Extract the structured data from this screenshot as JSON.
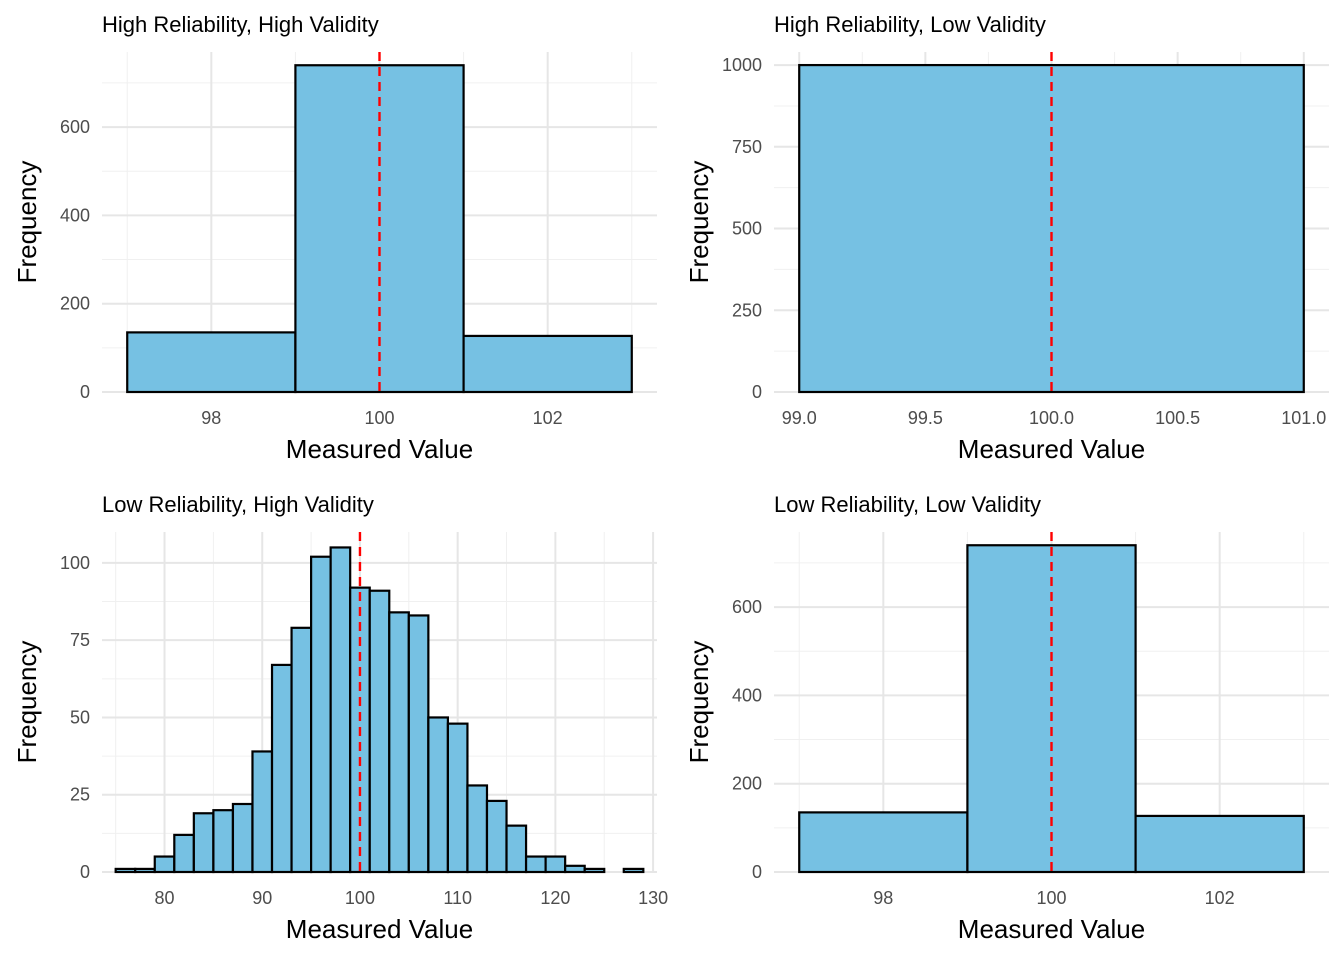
{
  "chart_data": [
    {
      "type": "bar",
      "title": "High Reliability, High Validity",
      "xlabel": "Measured Value",
      "ylabel": "Frequency",
      "xlim": [
        96.7,
        103.3
      ],
      "ylim": [
        0,
        770
      ],
      "x_ticks": [
        98,
        100,
        102
      ],
      "x_tick_labels": [
        "98",
        "100",
        "102"
      ],
      "y_ticks": [
        0,
        200,
        400,
        600
      ],
      "y_tick_labels": [
        "0",
        "200",
        "400",
        "600"
      ],
      "bins": [
        {
          "x0": 97,
          "x1": 99,
          "count": 135
        },
        {
          "x0": 99,
          "x1": 101,
          "count": 740
        },
        {
          "x0": 101,
          "x1": 103,
          "count": 127
        }
      ],
      "reference_line_x": 100,
      "grid": true
    },
    {
      "type": "bar",
      "title": "High Reliability, Low Validity",
      "xlabel": "Measured Value",
      "ylabel": "Frequency",
      "xlim": [
        98.9,
        101.1
      ],
      "ylim": [
        0,
        1040
      ],
      "x_ticks": [
        99.0,
        99.5,
        100.0,
        100.5,
        101.0
      ],
      "x_tick_labels": [
        "99.0",
        "99.5",
        "100.0",
        "100.5",
        "101.0"
      ],
      "y_ticks": [
        0,
        250,
        500,
        750,
        1000
      ],
      "y_tick_labels": [
        "0",
        "250",
        "500",
        "750",
        "1000"
      ],
      "bins": [
        {
          "x0": 99,
          "x1": 101,
          "count": 1000
        }
      ],
      "reference_line_x": 100,
      "grid": true
    },
    {
      "type": "bar",
      "title": "Low Reliability, High Validity",
      "xlabel": "Measured Value",
      "ylabel": "Frequency",
      "xlim": [
        73.6,
        130.4
      ],
      "ylim": [
        0,
        110
      ],
      "x_ticks": [
        80,
        90,
        100,
        110,
        120,
        130
      ],
      "x_tick_labels": [
        "80",
        "90",
        "100",
        "110",
        "120",
        "130"
      ],
      "y_ticks": [
        0,
        25,
        50,
        75,
        100
      ],
      "y_tick_labels": [
        "0",
        "25",
        "50",
        "75",
        "100"
      ],
      "bins": [
        {
          "x0": 75,
          "x1": 77,
          "count": 1
        },
        {
          "x0": 77,
          "x1": 79,
          "count": 1
        },
        {
          "x0": 79,
          "x1": 81,
          "count": 5
        },
        {
          "x0": 81,
          "x1": 83,
          "count": 12
        },
        {
          "x0": 83,
          "x1": 85,
          "count": 19
        },
        {
          "x0": 85,
          "x1": 87,
          "count": 20
        },
        {
          "x0": 87,
          "x1": 89,
          "count": 22
        },
        {
          "x0": 89,
          "x1": 91,
          "count": 39
        },
        {
          "x0": 91,
          "x1": 93,
          "count": 67
        },
        {
          "x0": 93,
          "x1": 95,
          "count": 79
        },
        {
          "x0": 95,
          "x1": 97,
          "count": 102
        },
        {
          "x0": 97,
          "x1": 99,
          "count": 105
        },
        {
          "x0": 99,
          "x1": 101,
          "count": 92
        },
        {
          "x0": 101,
          "x1": 103,
          "count": 91
        },
        {
          "x0": 103,
          "x1": 105,
          "count": 84
        },
        {
          "x0": 105,
          "x1": 107,
          "count": 83
        },
        {
          "x0": 107,
          "x1": 109,
          "count": 50
        },
        {
          "x0": 109,
          "x1": 111,
          "count": 48
        },
        {
          "x0": 111,
          "x1": 113,
          "count": 28
        },
        {
          "x0": 113,
          "x1": 115,
          "count": 23
        },
        {
          "x0": 115,
          "x1": 117,
          "count": 15
        },
        {
          "x0": 117,
          "x1": 119,
          "count": 5
        },
        {
          "x0": 119,
          "x1": 121,
          "count": 5
        },
        {
          "x0": 121,
          "x1": 123,
          "count": 2
        },
        {
          "x0": 123,
          "x1": 125,
          "count": 1
        },
        {
          "x0": 125,
          "x1": 127,
          "count": 0
        },
        {
          "x0": 127,
          "x1": 129,
          "count": 1
        }
      ],
      "reference_line_x": 100,
      "grid": true
    },
    {
      "type": "bar",
      "title": "Low Reliability, Low Validity",
      "xlabel": "Measured Value",
      "ylabel": "Frequency",
      "xlim": [
        96.7,
        103.3
      ],
      "ylim": [
        0,
        770
      ],
      "x_ticks": [
        98,
        100,
        102
      ],
      "x_tick_labels": [
        "98",
        "100",
        "102"
      ],
      "y_ticks": [
        0,
        200,
        400,
        600
      ],
      "y_tick_labels": [
        "0",
        "200",
        "400",
        "600"
      ],
      "bins": [
        {
          "x0": 97,
          "x1": 99,
          "count": 135
        },
        {
          "x0": 99,
          "x1": 101,
          "count": 740
        },
        {
          "x0": 101,
          "x1": 103,
          "count": 127
        }
      ],
      "reference_line_x": 100,
      "grid": true
    }
  ],
  "colors": {
    "bar_fill": "#76c1e3",
    "bar_stroke": "#000000",
    "reference_line": "#ff0000",
    "grid": "#e6e6e6",
    "tick_text": "#4d4d4d"
  }
}
